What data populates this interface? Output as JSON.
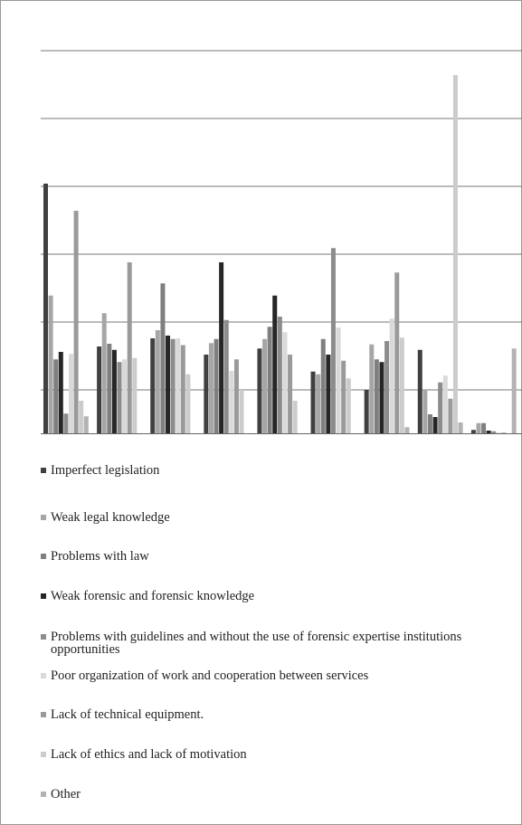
{
  "chart_data": {
    "type": "bar",
    "categories": [
      null,
      null,
      null,
      null,
      null,
      null,
      null,
      null,
      null
    ],
    "ylim": [
      0,
      56.4
    ],
    "yticks": [
      6.4,
      16.4,
      26.4,
      36.4,
      46.4,
      56.4
    ],
    "grid": true,
    "series": [
      {
        "name": "Imperfect legislation",
        "color": "#404040",
        "values": [
          36.8,
          12.8,
          14,
          11.6,
          12.5,
          9.1,
          6.4,
          12.3,
          0.5
        ]
      },
      {
        "name": "Weak legal knowledge",
        "color": "#a6a6a6",
        "values": [
          20.3,
          17.7,
          15.2,
          13.3,
          13.9,
          8.7,
          13.1,
          6.4,
          1.5
        ]
      },
      {
        "name": "Problems with law",
        "color": "#7f7f7f",
        "values": [
          10.9,
          13.2,
          22.1,
          13.9,
          15.7,
          13.9,
          10.9,
          2.8,
          1.5
        ]
      },
      {
        "name": "Weak forensic and forensic knowledge",
        "color": "#262626",
        "values": [
          12,
          12.3,
          14.4,
          25.2,
          20.3,
          11.6,
          10.5,
          2.4,
          0.4
        ]
      },
      {
        "name": "Problems with guidelines and without the use of forensic expertise institutions opportunities",
        "color": "#8c8c8c",
        "values": [
          2.9,
          10.5,
          13.9,
          16.7,
          17.2,
          27.3,
          13.6,
          7.5,
          0.3
        ]
      },
      {
        "name": "Poor organization of work and cooperation between services",
        "color": "#d9d9d9",
        "values": [
          11.7,
          10.9,
          14,
          9.2,
          14.9,
          15.6,
          16.9,
          8.5,
          0.1
        ]
      },
      {
        "name": "Lack of technical equipment.",
        "color": "#9a9a9a",
        "values": [
          32.8,
          25.2,
          13,
          10.9,
          11.6,
          10.7,
          23.7,
          5.1,
          0.1
        ]
      },
      {
        "name": "Lack of ethics and lack of motivation",
        "color": "#cccccc",
        "values": [
          4.8,
          11.1,
          8.7,
          6.4,
          4.8,
          8.1,
          14.1,
          52.8,
          0
        ]
      },
      {
        "name": "Other",
        "color": "#b3b3b3",
        "values": [
          2.5,
          0,
          0,
          0,
          0,
          0,
          0.9,
          1.6,
          12.5
        ]
      }
    ]
  }
}
